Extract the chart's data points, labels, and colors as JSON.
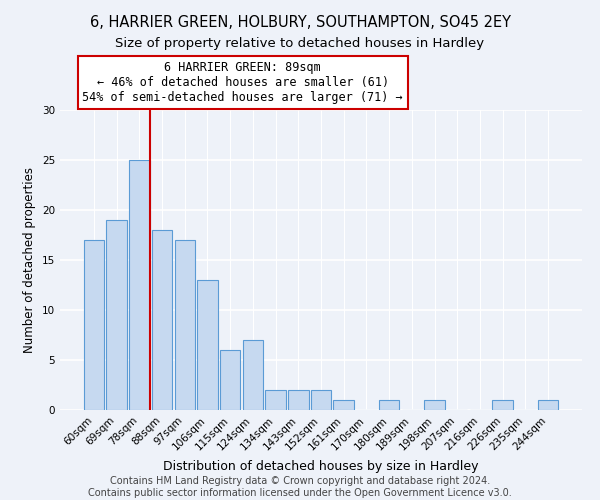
{
  "title": "6, HARRIER GREEN, HOLBURY, SOUTHAMPTON, SO45 2EY",
  "subtitle": "Size of property relative to detached houses in Hardley",
  "xlabel": "Distribution of detached houses by size in Hardley",
  "ylabel": "Number of detached properties",
  "bar_values": [
    17,
    19,
    25,
    18,
    17,
    13,
    6,
    7,
    2,
    2,
    2,
    1,
    0,
    1,
    0,
    1,
    0,
    0,
    1,
    0,
    1
  ],
  "bin_labels": [
    "60sqm",
    "69sqm",
    "78sqm",
    "88sqm",
    "97sqm",
    "106sqm",
    "115sqm",
    "124sqm",
    "134sqm",
    "143sqm",
    "152sqm",
    "161sqm",
    "170sqm",
    "180sqm",
    "189sqm",
    "198sqm",
    "207sqm",
    "216sqm",
    "226sqm",
    "235sqm",
    "244sqm"
  ],
  "bar_color": "#c6d9f0",
  "bar_edge_color": "#5b9bd5",
  "vline_color": "#cc0000",
  "annotation_line1": "6 HARRIER GREEN: 89sqm",
  "annotation_line2": "← 46% of detached houses are smaller (61)",
  "annotation_line3": "54% of semi-detached houses are larger (71) →",
  "annotation_box_edge": "#cc0000",
  "annotation_fontsize": 8.5,
  "ylim": [
    0,
    30
  ],
  "yticks": [
    0,
    5,
    10,
    15,
    20,
    25,
    30
  ],
  "footer_line1": "Contains HM Land Registry data © Crown copyright and database right 2024.",
  "footer_line2": "Contains public sector information licensed under the Open Government Licence v3.0.",
  "title_fontsize": 10.5,
  "subtitle_fontsize": 9.5,
  "xlabel_fontsize": 9,
  "ylabel_fontsize": 8.5,
  "footer_fontsize": 7,
  "background_color": "#eef2f9",
  "grid_color": "#ffffff",
  "tick_label_fontsize": 7.5
}
